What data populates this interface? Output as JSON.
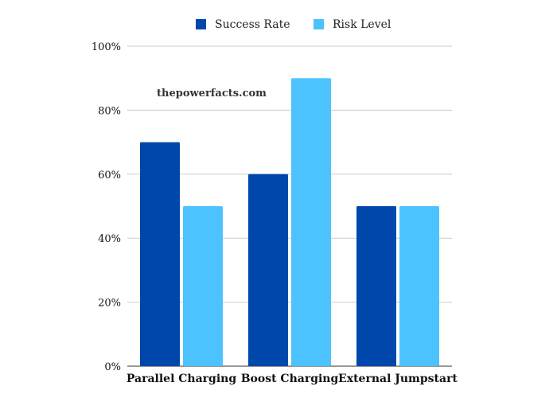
{
  "chart_data": {
    "type": "bar",
    "categories": [
      "Parallel Charging",
      "Boost Charging",
      "External Jumpstart"
    ],
    "series": [
      {
        "name": "Success Rate",
        "values": [
          70,
          60,
          50
        ],
        "color": "#0047ab"
      },
      {
        "name": "Risk Level",
        "values": [
          50,
          90,
          50
        ],
        "color": "#4cc3ff"
      }
    ],
    "y_ticks": [
      "0%",
      "20%",
      "40%",
      "60%",
      "80%",
      "100%"
    ],
    "ylim": [
      0,
      100
    ],
    "grid": true,
    "legend": "top-center",
    "watermark": "thepowerfacts.com"
  }
}
